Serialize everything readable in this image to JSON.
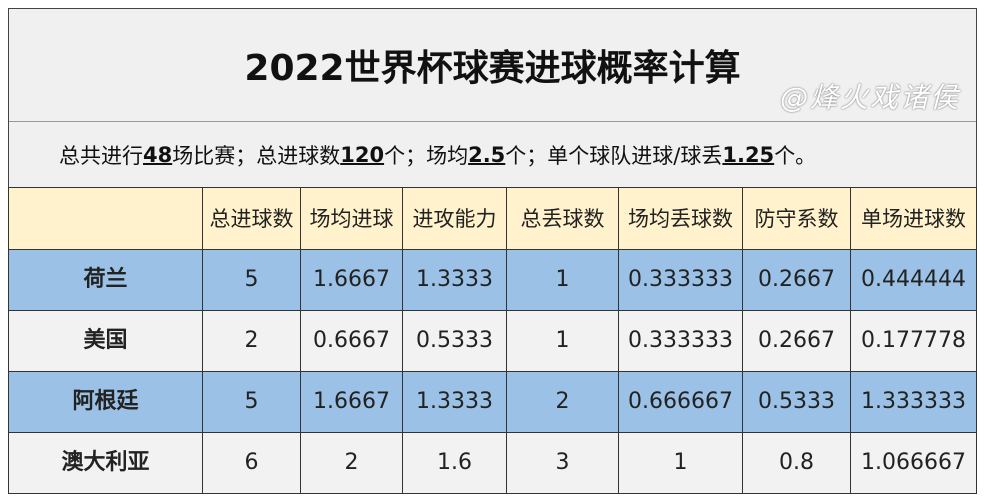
{
  "title": "2022世界杯球赛进球概率计算",
  "summary": {
    "p1": "总共进行",
    "v1": "48",
    "p2": "场比赛；总进球数",
    "v2": "120",
    "p3": "个；场均",
    "v3": "2.5",
    "p4": "个；单个球队进球/球丢",
    "v4": "1.25",
    "p5": "个。"
  },
  "headers": [
    "",
    "总进球数",
    "场均进球",
    "进攻能力",
    "总丢球数",
    "场均丢球数",
    "防守系数",
    "单场进球数"
  ],
  "rows": [
    [
      "荷兰",
      "5",
      "1.6667",
      "1.3333",
      "1",
      "0.333333",
      "0.2667",
      "0.444444"
    ],
    [
      "美国",
      "2",
      "0.6667",
      "0.5333",
      "1",
      "0.333333",
      "0.2667",
      "0.177778"
    ],
    [
      "阿根廷",
      "5",
      "1.6667",
      "1.3333",
      "2",
      "0.666667",
      "0.5333",
      "1.333333"
    ],
    [
      "澳大利亚",
      "6",
      "2",
      "1.6",
      "3",
      "1",
      "0.8",
      "1.066667"
    ]
  ],
  "colors": {
    "header_bg": "#fff2cc",
    "blue_row": "#9bc2e6",
    "gray_row": "#f2f2f2"
  },
  "watermark": "@烽火戏诸侯"
}
